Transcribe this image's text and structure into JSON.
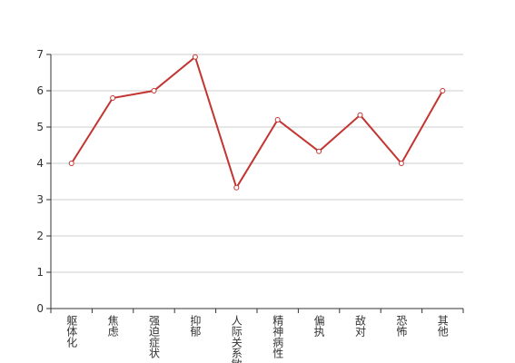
{
  "chart_data": {
    "type": "line",
    "categories": [
      "躯体化",
      "焦虑",
      "强迫症状",
      "抑郁",
      "人际关系敏感",
      "精神病性",
      "偏执",
      "敌对",
      "恐怖",
      "其他"
    ],
    "values": [
      4,
      5.8,
      6,
      6.93,
      3.33,
      5.2,
      4.33,
      5.33,
      4,
      6
    ],
    "color": "#c23531",
    "ylim": [
      0,
      7
    ],
    "yticks": [
      0,
      1,
      2,
      3,
      4,
      5,
      6,
      7
    ],
    "grid": true
  }
}
